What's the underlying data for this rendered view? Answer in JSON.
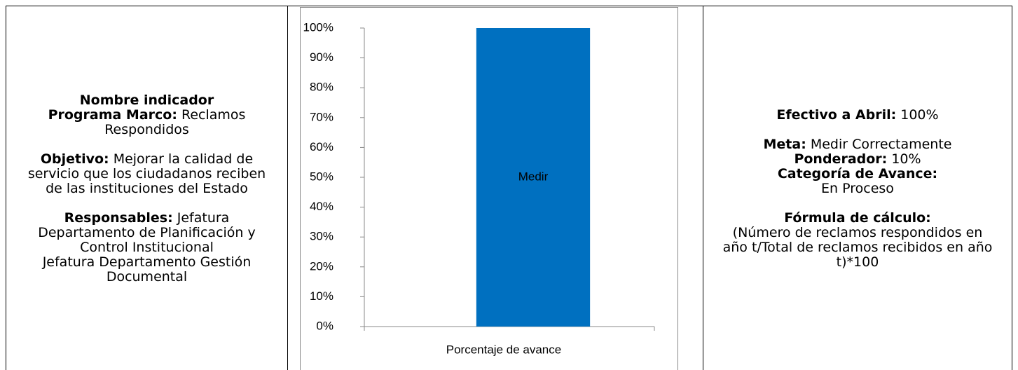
{
  "left": {
    "indicator": {
      "label1": "Nombre indicador",
      "label2": "Programa Marco:",
      "text": "Reclamos Respondidos"
    },
    "objective": {
      "label": "Objetivo:",
      "text": "Mejorar la calidad de servicio que los ciudadanos reciben de las instituciones del Estado"
    },
    "responsible": {
      "label": "Responsables:",
      "lines": [
        "Jefatura Departamento de Planificación y Control Institucional",
        "Jefatura Departamento Gestión Documental"
      ]
    }
  },
  "chart_data": {
    "type": "bar",
    "categories": [
      "Porcentaje de avance"
    ],
    "series": [
      {
        "name": "Medir",
        "color": "#0070c0",
        "values": [
          100
        ]
      }
    ],
    "ylim": [
      0,
      100
    ],
    "yticks": [
      {
        "value": 0,
        "label": "0%"
      },
      {
        "value": 10,
        "label": "10%"
      },
      {
        "value": 20,
        "label": "20%"
      },
      {
        "value": 30,
        "label": "30%"
      },
      {
        "value": 40,
        "label": "40%"
      },
      {
        "value": 50,
        "label": "50%"
      },
      {
        "value": 60,
        "label": "60%"
      },
      {
        "value": 70,
        "label": "70%"
      },
      {
        "value": 80,
        "label": "80%"
      },
      {
        "value": 90,
        "label": "90%"
      },
      {
        "value": 100,
        "label": "100%"
      }
    ],
    "grid": false
  },
  "right": {
    "effective": {
      "label": "Efectivo a Abril:",
      "text": "100%"
    },
    "goal": {
      "label": "Meta:",
      "text": "Medir Correctamente"
    },
    "weight": {
      "label": "Ponderador:",
      "text": "10%"
    },
    "category": {
      "label": "Categoría de Avance:",
      "text": "En Proceso"
    },
    "formula": {
      "label": "Fórmula de cálculo:",
      "text": "(Número de reclamos respondidos en año t/Total de reclamos recibidos en año t)*100"
    }
  }
}
